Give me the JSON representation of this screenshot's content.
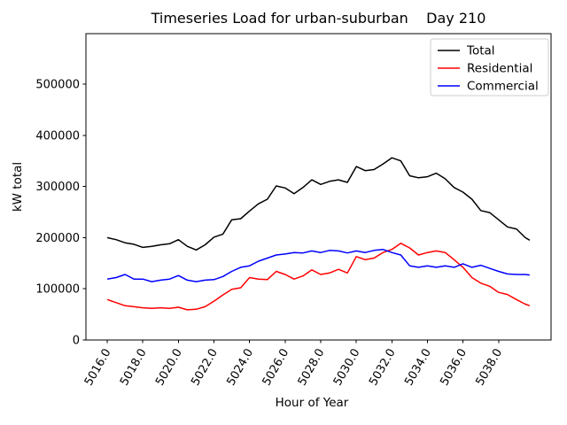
{
  "title": "Timeseries Load for urban-suburban    Day 210",
  "chart_data": {
    "type": "line",
    "title": "Timeseries Load for urban-suburban    Day 210",
    "xlabel": "Hour of Year",
    "ylabel": "kW total",
    "grid": false,
    "legend_position": "upper right",
    "xlim": [
      5014.8,
      5040.95
    ],
    "ylim": [
      0,
      598600
    ],
    "xticks": [
      5016,
      5018,
      5020,
      5022,
      5024,
      5026,
      5028,
      5030,
      5032,
      5034,
      5036,
      5038
    ],
    "xtick_labels": [
      "5016.0",
      "5018.0",
      "5020.0",
      "5022.0",
      "5024.0",
      "5026.0",
      "5028.0",
      "5030.0",
      "5032.0",
      "5034.0",
      "5036.0",
      "5038.0"
    ],
    "xtick_rotation_deg": 60,
    "yticks": [
      0,
      100000,
      200000,
      300000,
      400000,
      500000
    ],
    "ytick_labels": [
      "0",
      "100000",
      "200000",
      "300000",
      "400000",
      "500000"
    ],
    "x": [
      5016.0,
      5016.5,
      5017.0,
      5017.5,
      5018.0,
      5018.5,
      5019.0,
      5019.5,
      5020.0,
      5020.5,
      5021.0,
      5021.5,
      5022.0,
      5022.5,
      5023.0,
      5023.5,
      5024.0,
      5024.5,
      5025.0,
      5025.5,
      5026.0,
      5026.5,
      5027.0,
      5027.5,
      5028.0,
      5028.5,
      5029.0,
      5029.5,
      5030.0,
      5030.5,
      5031.0,
      5031.5,
      5032.0,
      5032.5,
      5033.0,
      5033.5,
      5034.0,
      5034.5,
      5035.0,
      5035.5,
      5036.0,
      5036.5,
      5037.0,
      5037.5,
      5038.0,
      5038.5,
      5039.0,
      5039.5,
      5039.75
    ],
    "series": [
      {
        "name": "Total",
        "color": "#000000",
        "values": [
          200000,
          196000,
          190000,
          187000,
          181000,
          183000,
          186000,
          188000,
          196000,
          183000,
          176000,
          186000,
          201000,
          207000,
          235000,
          237000,
          252000,
          266000,
          275000,
          301000,
          297000,
          286000,
          298000,
          313000,
          304000,
          310000,
          313000,
          308000,
          339000,
          331000,
          333000,
          344000,
          356000,
          350000,
          321000,
          317000,
          319000,
          326000,
          315000,
          298000,
          289000,
          275000,
          253000,
          249000,
          235000,
          221000,
          217000,
          200000,
          195000
        ]
      },
      {
        "name": "Residential",
        "color": "#ff0000",
        "values": [
          79000,
          73000,
          67000,
          65000,
          63000,
          62000,
          63000,
          62000,
          64000,
          59000,
          60000,
          65000,
          76000,
          88000,
          99000,
          102000,
          122000,
          119000,
          118000,
          134000,
          128000,
          119000,
          125000,
          137000,
          128000,
          131000,
          138000,
          131000,
          163000,
          157000,
          160000,
          171000,
          177000,
          189000,
          180000,
          166000,
          171000,
          174000,
          171000,
          157000,
          142000,
          122000,
          111000,
          105000,
          93000,
          89000,
          79000,
          70000,
          67000
        ]
      },
      {
        "name": "Commercial",
        "color": "#0000ff",
        "values": [
          119000,
          122000,
          128000,
          119000,
          119000,
          114000,
          117000,
          119000,
          126000,
          117000,
          114000,
          117000,
          118000,
          124000,
          134000,
          142000,
          145000,
          154000,
          160000,
          166000,
          168000,
          171000,
          170000,
          174000,
          171000,
          175000,
          174000,
          170000,
          174000,
          171000,
          175000,
          177000,
          171000,
          166000,
          145000,
          142000,
          145000,
          142000,
          145000,
          142000,
          149000,
          142000,
          146000,
          140000,
          134000,
          129000,
          128000,
          128000,
          127000
        ]
      }
    ]
  }
}
